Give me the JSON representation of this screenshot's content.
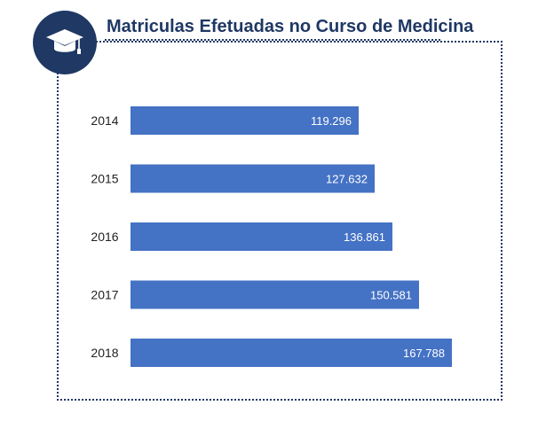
{
  "header": {
    "title": "Matriculas Efetuadas no Curso de Medicina",
    "icon": "graduation-cap-icon"
  },
  "colors": {
    "bar": "#4472c4",
    "accent": "#1f3864",
    "value_text": "#ffffff",
    "label_text": "#222222"
  },
  "chart_data": {
    "type": "bar",
    "orientation": "horizontal",
    "title": "Matriculas Efetuadas no Curso de Medicina",
    "categories": [
      "2014",
      "2015",
      "2016",
      "2017",
      "2018"
    ],
    "values": [
      119296,
      127632,
      136861,
      150581,
      167788
    ],
    "value_labels": [
      "119.296",
      "127.632",
      "136.861",
      "150.581",
      "167.788"
    ],
    "xlabel": "",
    "ylabel": "",
    "xlim": [
      0,
      167788
    ],
    "grid": false,
    "legend": "none"
  }
}
